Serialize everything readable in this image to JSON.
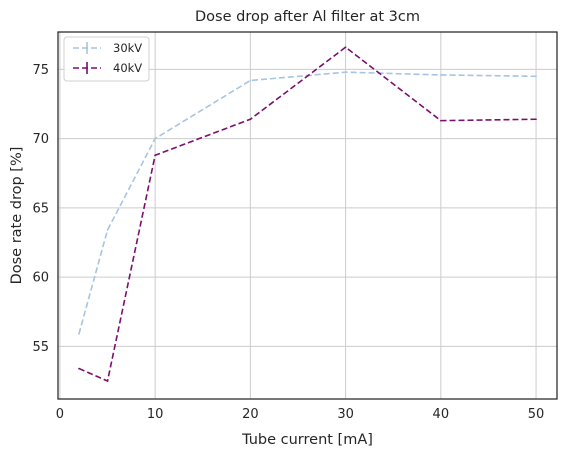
{
  "chart_data": {
    "type": "line",
    "title": "Dose drop after Al filter at 3cm",
    "xlabel": "Tube current [mA]",
    "ylabel": "Dose rate drop [%]",
    "xlim": [
      -0.2,
      52.2
    ],
    "ylim": [
      51.2,
      77.7
    ],
    "xticks": [
      0,
      10,
      20,
      30,
      40,
      50
    ],
    "yticks": [
      55,
      60,
      65,
      70,
      75
    ],
    "grid": true,
    "legend_position": "upper-left",
    "series": [
      {
        "name": "30kV",
        "color": "#a6c4e3",
        "linestyle": "dashed",
        "x": [
          2,
          5,
          10,
          20,
          30,
          40,
          50
        ],
        "y": [
          55.9,
          63.4,
          70.0,
          74.2,
          74.8,
          74.6,
          74.5
        ]
      },
      {
        "name": "40kV",
        "color": "#7b0f6e",
        "linestyle": "dashed",
        "x": [
          2,
          5,
          10,
          20,
          30,
          40,
          50
        ],
        "y": [
          53.4,
          52.5,
          68.8,
          71.4,
          76.6,
          71.3,
          71.4
        ]
      }
    ]
  }
}
